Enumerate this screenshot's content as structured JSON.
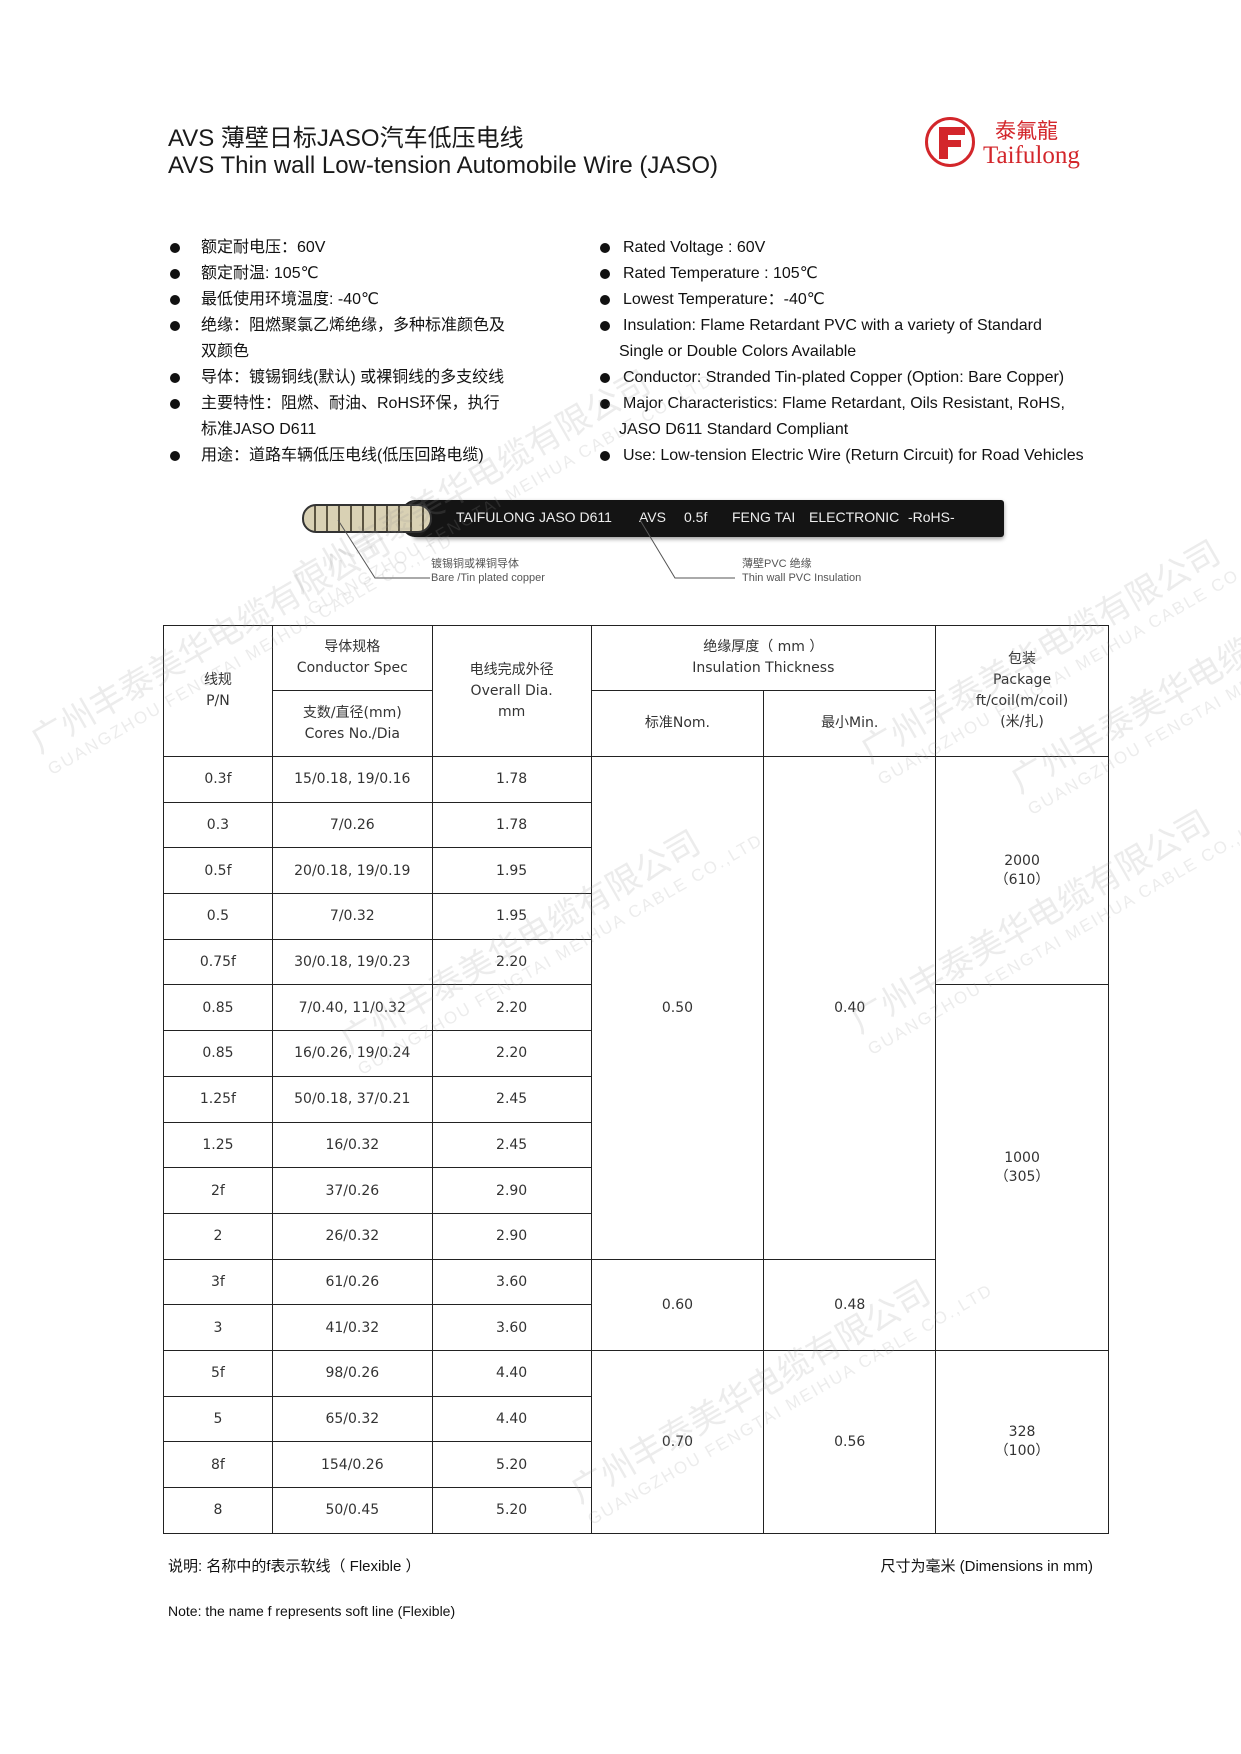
{
  "header": {
    "title_cn": "AVS 薄壁日标JASO汽车低压电线",
    "title_en": "AVS Thin wall Low-tension Automobile Wire (JASO)"
  },
  "logo": {
    "cn": "泰氟龍",
    "en": "Taifulong",
    "color": "#d3262b"
  },
  "specs_cn": [
    "额定耐电压：60V",
    "额定耐温: 105℃",
    "最低使用环境温度: -40℃",
    "绝缘：阻燃聚氯乙烯绝缘，多种标准颜色及",
    "双颜色",
    "导体：镀锡铜线(默认) 或裸铜线的多支绞线",
    "主要特性：阻燃、耐油、RoHS环保，执行",
    "标准JASO D611",
    "用途：道路车辆低压电线(低压回路电缆)"
  ],
  "specs_en": [
    "Rated Voltage : 60V",
    "Rated Temperature : 105℃",
    "Lowest Temperature：-40℃",
    "Insulation: Flame Retardant PVC with a variety of Standard",
    "Single or Double Colors Available",
    "Conductor: Stranded Tin-plated Copper (Option: Bare Copper)",
    "Major Characteristics: Flame Retardant, Oils Resistant, RoHS,",
    "JASO D611 Standard Compliant",
    "Use: Low-tension Electric Wire (Return Circuit) for Road Vehicles"
  ],
  "wire": {
    "print": [
      "TAIFULONG",
      "JASO D611",
      "AVS",
      "0.5f",
      "FENG TAI",
      "ELECTRONIC",
      "-RoHS-"
    ],
    "conductor_label_cn": "镀锡铜或裸铜导体",
    "conductor_label_en": "Bare /Tin plated copper",
    "insulation_label_cn": "薄壁PVC 绝缘",
    "insulation_label_en": "Thin wall PVC Insulation"
  },
  "table": {
    "headers": {
      "pn_cn": "线规",
      "pn_en": "P/N",
      "cond_cn": "导体规格",
      "cond_en": "Conductor Spec",
      "cores_cn": "支数/直径(mm)",
      "cores_en": "Cores No./Dia",
      "dia_cn": "电线完成外径",
      "dia_en": "Overall  Dia.",
      "dia_unit": "mm",
      "ins_cn": "绝缘厚度（ mm ）",
      "ins_en": "Insulation Thickness",
      "nom": "标准Nom.",
      "min": "最小Min.",
      "pkg_cn": "包装",
      "pkg_en": "Package",
      "pkg_unit": "ft/coil(m/coil)",
      "pkg_unit_cn": "(米/扎)"
    },
    "rows": [
      {
        "pn": "0.3f",
        "cores": "15/0.18, 19/0.16",
        "dia": "1.78"
      },
      {
        "pn": "0.3",
        "cores": "7/0.26",
        "dia": "1.78"
      },
      {
        "pn": "0.5f",
        "cores": "20/0.18, 19/0.19",
        "dia": "1.95"
      },
      {
        "pn": "0.5",
        "cores": "7/0.32",
        "dia": "1.95"
      },
      {
        "pn": "0.75f",
        "cores": "30/0.18, 19/0.23",
        "dia": "2.20"
      },
      {
        "pn": "0.85",
        "cores": "7/0.40, 11/0.32",
        "dia": "2.20"
      },
      {
        "pn": "0.85",
        "cores": "16/0.26, 19/0.24",
        "dia": "2.20"
      },
      {
        "pn": "1.25f",
        "cores": "50/0.18, 37/0.21",
        "dia": "2.45"
      },
      {
        "pn": "1.25",
        "cores": "16/0.32",
        "dia": "2.45"
      },
      {
        "pn": "2f",
        "cores": "37/0.26",
        "dia": "2.90"
      },
      {
        "pn": "2",
        "cores": "26/0.32",
        "dia": "2.90"
      },
      {
        "pn": "3f",
        "cores": "61/0.26",
        "dia": "3.60"
      },
      {
        "pn": "3",
        "cores": "41/0.32",
        "dia": "3.60"
      },
      {
        "pn": "5f",
        "cores": "98/0.26",
        "dia": "4.40"
      },
      {
        "pn": "5",
        "cores": "65/0.32",
        "dia": "4.40"
      },
      {
        "pn": "8f",
        "cores": "154/0.26",
        "dia": "5.20"
      },
      {
        "pn": "8",
        "cores": "50/0.45",
        "dia": "5.20"
      }
    ],
    "thickness_groups": [
      {
        "start": 0,
        "span": 11,
        "nom": "0.50",
        "min": "0.40"
      },
      {
        "start": 11,
        "span": 2,
        "nom": "0.60",
        "min": "0.48"
      },
      {
        "start": 13,
        "span": 4,
        "nom": "0.70",
        "min": "0.56"
      }
    ],
    "package_groups": [
      {
        "start": 0,
        "span": 5,
        "ft": "2000",
        "m": "（610）"
      },
      {
        "start": 5,
        "span": 8,
        "ft": "1000",
        "m": "（305）"
      },
      {
        "start": 13,
        "span": 4,
        "ft": "328",
        "m": "（100）"
      }
    ]
  },
  "footer": {
    "note_cn": "说明: 名称中的f表示软线（ Flexible ）",
    "units": "尺寸为毫米 (Dimensions in mm)",
    "note_en": "Note: the name f represents soft line (Flexible)"
  },
  "watermark": {
    "cn": "广州丰泰美华电缆有限公司",
    "en": "GUANGZHOU FENGTAI MEIHUA CABLE CO.,LTD"
  }
}
